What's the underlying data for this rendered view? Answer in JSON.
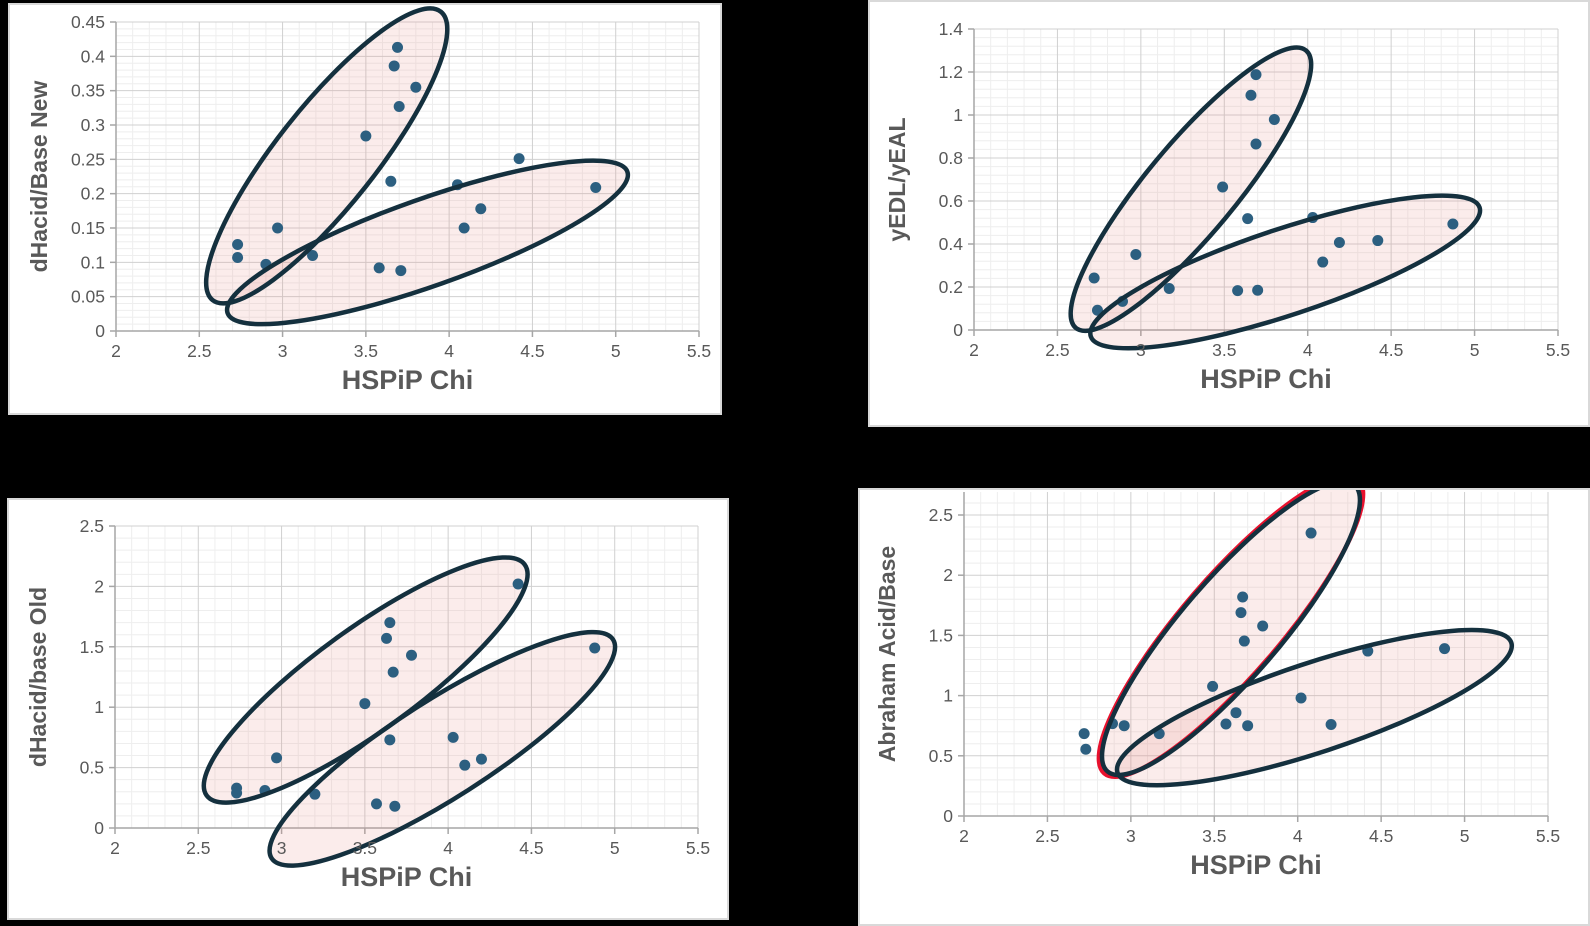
{
  "page": {
    "background": "#000000"
  },
  "colors": {
    "panel_bg": "#ffffff",
    "panel_border": "#d9d9d9",
    "grid_major": "#d0d0d0",
    "grid_minor": "#eeeeee",
    "axis_line": "#a6a6a6",
    "text": "#595959",
    "point_fill": "#2c5f80",
    "ellipse_stroke": "#14303e",
    "ellipse_fill": "#e89086",
    "ellipse_fill_opacity": 0.17,
    "red_highlight": "#e8112d"
  },
  "chart_data": [
    {
      "id": "dhacid-base-new",
      "type": "scatter",
      "xlabel": "HSPiP Chi",
      "ylabel": "dHacid/Base New",
      "xlim": [
        2,
        5.5
      ],
      "ylim": [
        0,
        0.45
      ],
      "x_tick_step": 0.5,
      "x_minor_step": 0.1,
      "y_tick_step": 0.05,
      "y_minor_step": 0.01,
      "x_ticks": [
        "2",
        "2.5",
        "3",
        "3.5",
        "4",
        "4.5",
        "5",
        "5.5"
      ],
      "y_ticks": [
        "0",
        "0.05",
        "0.1",
        "0.15",
        "0.2",
        "0.25",
        "0.3",
        "0.35",
        "0.4",
        "0.45"
      ],
      "grid": true,
      "legend": "none",
      "points": [
        [
          2.73,
          0.126
        ],
        [
          2.73,
          0.107
        ],
        [
          2.9,
          0.097
        ],
        [
          2.97,
          0.15
        ],
        [
          3.18,
          0.11
        ],
        [
          3.5,
          0.284
        ],
        [
          3.58,
          0.092
        ],
        [
          3.65,
          0.218
        ],
        [
          3.67,
          0.386
        ],
        [
          3.69,
          0.413
        ],
        [
          3.7,
          0.327
        ],
        [
          3.71,
          0.088
        ],
        [
          3.8,
          0.355
        ],
        [
          4.05,
          0.213
        ],
        [
          4.09,
          0.15
        ],
        [
          4.19,
          0.178
        ],
        [
          4.42,
          0.251
        ],
        [
          4.88,
          0.209
        ]
      ],
      "ellipses": [
        {
          "x1": 2.58,
          "y1": 0.045,
          "x2": 3.95,
          "y2": 0.465,
          "minor_ratio": 0.27
        },
        {
          "x1": 2.67,
          "y1": 0.026,
          "x2": 5.07,
          "y2": 0.232,
          "minor_ratio": 0.205
        }
      ]
    },
    {
      "id": "yedl-yeal",
      "type": "scatter",
      "xlabel": "HSPiP Chi",
      "ylabel": "yEDL/yEAL",
      "xlim": [
        2,
        5.5
      ],
      "ylim": [
        0,
        1.4
      ],
      "x_tick_step": 0.5,
      "x_minor_step": 0.1,
      "y_tick_step": 0.2,
      "y_minor_step": 0.04,
      "x_ticks": [
        "2",
        "2.5",
        "3",
        "3.5",
        "4",
        "4.5",
        "5",
        "5.5"
      ],
      "y_ticks": [
        "0",
        "0.2",
        "0.4",
        "0.6",
        "0.8",
        "1",
        "1.2",
        "1.4"
      ],
      "grid": true,
      "legend": "none",
      "points": [
        [
          2.72,
          0.242
        ],
        [
          2.74,
          0.092
        ],
        [
          2.89,
          0.133
        ],
        [
          2.97,
          0.351
        ],
        [
          3.17,
          0.193
        ],
        [
          3.49,
          0.665
        ],
        [
          3.58,
          0.183
        ],
        [
          3.64,
          0.518
        ],
        [
          3.66,
          1.092
        ],
        [
          3.69,
          1.188
        ],
        [
          3.69,
          0.865
        ],
        [
          3.7,
          0.185
        ],
        [
          3.8,
          0.979
        ],
        [
          4.03,
          0.523
        ],
        [
          4.09,
          0.316
        ],
        [
          4.19,
          0.407
        ],
        [
          4.42,
          0.416
        ],
        [
          4.87,
          0.493
        ]
      ],
      "ellipses": [
        {
          "x1": 2.61,
          "y1": 0.01,
          "x2": 3.99,
          "y2": 1.3,
          "minor_ratio": 0.25
        },
        {
          "x1": 2.7,
          "y1": -0.03,
          "x2": 5.03,
          "y2": 0.57,
          "minor_ratio": 0.21
        }
      ]
    },
    {
      "id": "dhacid-base-old",
      "type": "scatter",
      "xlabel": "HSPiP Chi",
      "ylabel": "dHacid/base Old",
      "xlim": [
        2,
        5.5
      ],
      "ylim": [
        0,
        2.5
      ],
      "x_tick_step": 0.5,
      "x_minor_step": 0.1,
      "y_tick_step": 0.5,
      "y_minor_step": 0.1,
      "x_ticks": [
        "2",
        "2.5",
        "3",
        "3.5",
        "4",
        "4.5",
        "5",
        "5.5"
      ],
      "y_ticks": [
        "0",
        "0.5",
        "1",
        "1.5",
        "2",
        "2.5"
      ],
      "grid": true,
      "legend": "none",
      "points": [
        [
          2.73,
          0.33
        ],
        [
          2.73,
          0.29
        ],
        [
          2.9,
          0.31
        ],
        [
          2.97,
          0.58
        ],
        [
          3.2,
          0.28
        ],
        [
          3.5,
          1.03
        ],
        [
          3.57,
          0.2
        ],
        [
          3.63,
          1.57
        ],
        [
          3.65,
          1.7
        ],
        [
          3.65,
          0.73
        ],
        [
          3.67,
          1.29
        ],
        [
          3.68,
          0.18
        ],
        [
          3.78,
          1.43
        ],
        [
          4.03,
          0.75
        ],
        [
          4.1,
          0.52
        ],
        [
          4.2,
          0.57
        ],
        [
          4.42,
          2.02
        ],
        [
          4.88,
          1.49
        ]
      ],
      "ellipses": [
        {
          "x1": 2.55,
          "y1": 0.27,
          "x2": 4.46,
          "y2": 2.18,
          "minor_ratio": 0.26
        },
        {
          "x1": 2.94,
          "y1": -0.25,
          "x2": 4.99,
          "y2": 1.56,
          "minor_ratio": 0.24
        }
      ]
    },
    {
      "id": "abraham-acid-base",
      "type": "scatter",
      "xlabel": "HSPiP Chi",
      "ylabel": "Abraham Acid/Base",
      "xlim": [
        2,
        5.5
      ],
      "ylim": [
        0,
        2.5
      ],
      "y_grid_max": 2.69,
      "x_tick_step": 0.5,
      "x_minor_step": 0.1,
      "y_tick_step": 0.5,
      "y_minor_step": 0.1,
      "x_ticks": [
        "2",
        "2.5",
        "3",
        "3.5",
        "4",
        "4.5",
        "5",
        "5.5"
      ],
      "y_ticks": [
        "0",
        "0.5",
        "1",
        "1.5",
        "2",
        "2.5"
      ],
      "grid": true,
      "legend": "none",
      "points": [
        [
          2.72,
          0.684
        ],
        [
          2.73,
          0.554
        ],
        [
          2.89,
          0.767
        ],
        [
          2.96,
          0.75
        ],
        [
          3.17,
          0.684
        ],
        [
          3.49,
          1.077
        ],
        [
          3.57,
          0.764
        ],
        [
          3.63,
          0.858
        ],
        [
          3.66,
          1.689
        ],
        [
          3.67,
          1.819
        ],
        [
          3.68,
          1.453
        ],
        [
          3.7,
          0.75
        ],
        [
          3.79,
          1.578
        ],
        [
          4.02,
          0.98
        ],
        [
          4.08,
          2.35
        ],
        [
          4.2,
          0.76
        ],
        [
          4.42,
          1.37
        ],
        [
          4.88,
          1.39
        ]
      ],
      "ellipses": [
        {
          "x1": 2.86,
          "y1": 0.37,
          "x2": 4.34,
          "y2": 2.75,
          "minor_ratio": 0.26,
          "red_backing": true
        },
        {
          "x1": 2.92,
          "y1": 0.36,
          "x2": 5.28,
          "y2": 1.44,
          "minor_ratio": 0.215
        }
      ]
    }
  ]
}
